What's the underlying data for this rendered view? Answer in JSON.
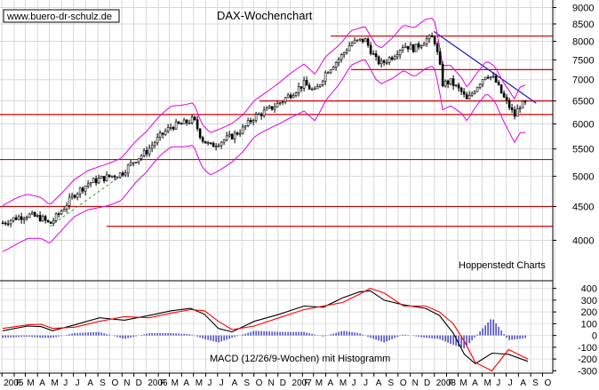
{
  "source_label": "www.buero-dr-schulz.de",
  "credit": "Hoppenstedt Charts",
  "chart_data": [
    {
      "type": "candlestick",
      "title": "DAX-Wochenchart",
      "y_axis": {
        "scale": "log",
        "ylim": [
          3600,
          9000
        ],
        "ticks": [
          4000,
          4500,
          5000,
          5500,
          6000,
          6500,
          7000,
          7500,
          8000,
          8500,
          9000
        ]
      },
      "x_range": [
        "2004-12-27",
        "2008-10-27"
      ],
      "overlays": {
        "horizontal_lines": [
          8150,
          7250,
          6500,
          6200,
          5300,
          4500,
          4200
        ],
        "downtrend_line": [
          [
            "2007-12-31",
            8280
          ],
          [
            "2008-09-15",
            6450
          ]
        ],
        "uptrend_dashed": [
          [
            "2005-05-02",
            4200
          ],
          [
            "2005-11-07",
            5050
          ]
        ],
        "trend_channel": {
          "color": "#e000e0",
          "description": "upper and lower bands"
        }
      },
      "series": [
        {
          "kind": "weekly-ohlc",
          "points": [
            [
              "2005-01-03",
              4250
            ],
            [
              "2005-02-07",
              4330
            ],
            [
              "2005-03-07",
              4370
            ],
            [
              "2005-04-11",
              4320
            ],
            [
              "2005-05-02",
              4230
            ],
            [
              "2005-05-30",
              4420
            ],
            [
              "2005-07-04",
              4700
            ],
            [
              "2005-08-08",
              4880
            ],
            [
              "2005-09-05",
              4950
            ],
            [
              "2005-10-03",
              5000
            ],
            [
              "2005-10-31",
              5050
            ],
            [
              "2005-12-05",
              5300
            ],
            [
              "2006-01-02",
              5450
            ],
            [
              "2006-02-06",
              5750
            ],
            [
              "2006-03-06",
              5950
            ],
            [
              "2006-04-03",
              6000
            ],
            [
              "2006-05-01",
              6100
            ],
            [
              "2006-05-22",
              5700
            ],
            [
              "2006-06-12",
              5550
            ],
            [
              "2006-07-10",
              5650
            ],
            [
              "2006-08-07",
              5750
            ],
            [
              "2006-09-04",
              5900
            ],
            [
              "2006-10-02",
              6150
            ],
            [
              "2006-11-06",
              6300
            ],
            [
              "2006-12-04",
              6450
            ],
            [
              "2007-01-08",
              6700
            ],
            [
              "2007-02-05",
              6900
            ],
            [
              "2007-03-05",
              6700
            ],
            [
              "2007-04-02",
              7200
            ],
            [
              "2007-05-07",
              7550
            ],
            [
              "2007-06-04",
              7950
            ],
            [
              "2007-07-09",
              8050
            ],
            [
              "2007-08-06",
              7500
            ],
            [
              "2007-08-20",
              7400
            ],
            [
              "2007-09-17",
              7600
            ],
            [
              "2007-10-15",
              7900
            ],
            [
              "2007-11-12",
              7800
            ],
            [
              "2007-12-10",
              8050
            ],
            [
              "2007-12-31",
              8100
            ],
            [
              "2008-01-14",
              7400
            ],
            [
              "2008-01-21",
              6900
            ],
            [
              "2008-02-11",
              6950
            ],
            [
              "2008-03-10",
              6700
            ],
            [
              "2008-03-24",
              6500
            ],
            [
              "2008-04-14",
              6800
            ],
            [
              "2008-05-12",
              7150
            ],
            [
              "2008-06-02",
              7000
            ],
            [
              "2008-06-23",
              6600
            ],
            [
              "2008-07-14",
              6300
            ],
            [
              "2008-07-21",
              6150
            ],
            [
              "2008-08-04",
              6400
            ],
            [
              "2008-08-25",
              6450
            ]
          ]
        }
      ],
      "x_tick_labels": [
        "2005",
        "F",
        "M",
        "A",
        "M",
        "J",
        "J",
        "A",
        "S",
        "O",
        "N",
        "D",
        "2006",
        "F",
        "M",
        "A",
        "M",
        "J",
        "J",
        "A",
        "S",
        "O",
        "N",
        "D",
        "2007",
        "F",
        "M",
        "A",
        "M",
        "J",
        "J",
        "A",
        "S",
        "O",
        "N",
        "D",
        "2008",
        "F",
        "M",
        "A",
        "M",
        "J",
        "J",
        "A",
        "S",
        "O"
      ]
    },
    {
      "type": "line",
      "title": "MACD (12/26/9-Wochen) mit Histogramm",
      "ylim": [
        -320,
        450
      ],
      "ticks": [
        400,
        300,
        200,
        100,
        0,
        -100,
        -200,
        -300
      ],
      "series": [
        {
          "kind": "macd",
          "color": "#000000",
          "points": [
            [
              "2005-01-03",
              40
            ],
            [
              "2005-03-07",
              80
            ],
            [
              "2005-04-11",
              75
            ],
            [
              "2005-05-09",
              40
            ],
            [
              "2005-07-04",
              90
            ],
            [
              "2005-09-05",
              150
            ],
            [
              "2005-11-07",
              130
            ],
            [
              "2006-01-09",
              170
            ],
            [
              "2006-03-06",
              210
            ],
            [
              "2006-04-24",
              230
            ],
            [
              "2006-05-29",
              180
            ],
            [
              "2006-07-03",
              60
            ],
            [
              "2006-08-07",
              30
            ],
            [
              "2006-10-02",
              120
            ],
            [
              "2006-12-04",
              180
            ],
            [
              "2007-02-05",
              250
            ],
            [
              "2007-03-26",
              240
            ],
            [
              "2007-05-14",
              320
            ],
            [
              "2007-06-25",
              370
            ],
            [
              "2007-07-23",
              380
            ],
            [
              "2007-08-27",
              300
            ],
            [
              "2007-10-15",
              260
            ],
            [
              "2007-12-10",
              230
            ],
            [
              "2008-01-14",
              170
            ],
            [
              "2008-02-18",
              20
            ],
            [
              "2008-03-17",
              -160
            ],
            [
              "2008-04-14",
              -240
            ],
            [
              "2008-05-26",
              -150
            ],
            [
              "2008-07-07",
              -160
            ],
            [
              "2008-08-25",
              -220
            ]
          ]
        },
        {
          "kind": "signal",
          "color": "#ff0000",
          "points": [
            [
              "2005-01-03",
              60
            ],
            [
              "2005-03-07",
              90
            ],
            [
              "2005-04-11",
              95
            ],
            [
              "2005-05-09",
              60
            ],
            [
              "2005-07-04",
              70
            ],
            [
              "2005-09-05",
              120
            ],
            [
              "2005-11-07",
              160
            ],
            [
              "2006-01-09",
              150
            ],
            [
              "2006-03-06",
              190
            ],
            [
              "2006-04-24",
              220
            ],
            [
              "2006-05-29",
              210
            ],
            [
              "2006-07-03",
              120
            ],
            [
              "2006-08-07",
              50
            ],
            [
              "2006-10-02",
              80
            ],
            [
              "2006-12-04",
              150
            ],
            [
              "2007-02-05",
              220
            ],
            [
              "2007-03-26",
              250
            ],
            [
              "2007-05-14",
              280
            ],
            [
              "2007-06-25",
              350
            ],
            [
              "2007-07-23",
              400
            ],
            [
              "2007-08-27",
              360
            ],
            [
              "2007-10-15",
              250
            ],
            [
              "2007-12-10",
              250
            ],
            [
              "2008-01-14",
              200
            ],
            [
              "2008-02-18",
              100
            ],
            [
              "2008-03-17",
              -50
            ],
            [
              "2008-04-14",
              -230
            ],
            [
              "2008-05-26",
              -300
            ],
            [
              "2008-07-07",
              -120
            ],
            [
              "2008-08-25",
              -200
            ]
          ]
        }
      ]
    }
  ]
}
